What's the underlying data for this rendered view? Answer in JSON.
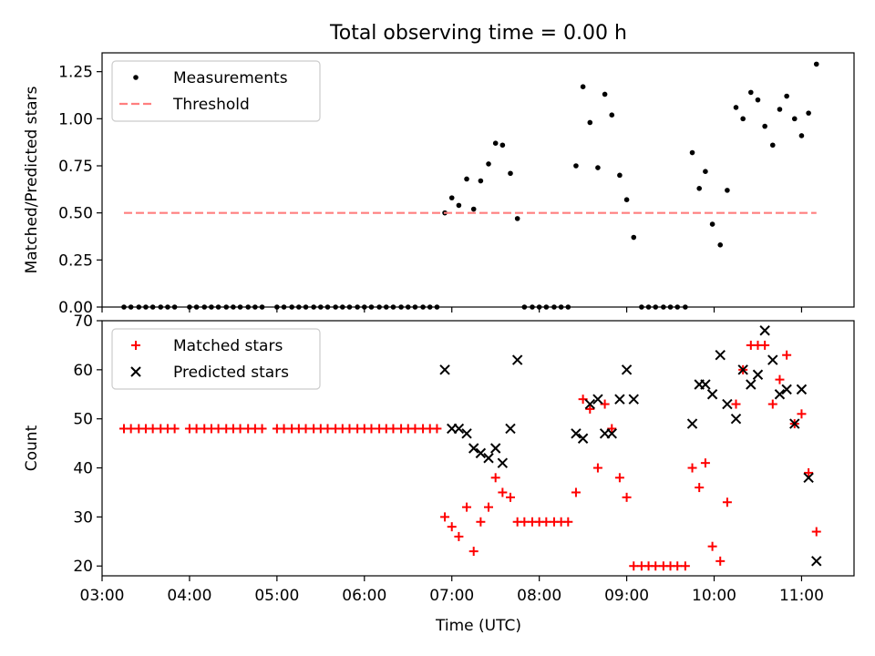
{
  "figure": {
    "title": "Total observing time = 0.00 h"
  },
  "chart_data": [
    {
      "type": "scatter",
      "ylabel": "Matched/Predicted stars",
      "ylim": [
        0,
        1.35
      ],
      "yticks": [
        "0.00",
        "0.25",
        "0.50",
        "0.75",
        "1.00",
        "1.25"
      ],
      "xlim": [
        3.0,
        11.6
      ],
      "legend_placement": "top-left",
      "series": [
        {
          "name": "Measurements",
          "color": "#000000",
          "marker": "dot",
          "points": [
            [
              3.25,
              0
            ],
            [
              3.33,
              0
            ],
            [
              3.42,
              0
            ],
            [
              3.5,
              0
            ],
            [
              3.58,
              0
            ],
            [
              3.67,
              0
            ],
            [
              3.75,
              0
            ],
            [
              3.83,
              0
            ],
            [
              4.0,
              0
            ],
            [
              4.08,
              0
            ],
            [
              4.17,
              0
            ],
            [
              4.25,
              0
            ],
            [
              4.33,
              0
            ],
            [
              4.42,
              0
            ],
            [
              4.5,
              0
            ],
            [
              4.58,
              0
            ],
            [
              4.67,
              0
            ],
            [
              4.75,
              0
            ],
            [
              4.83,
              0
            ],
            [
              5.0,
              0
            ],
            [
              5.08,
              0
            ],
            [
              5.17,
              0
            ],
            [
              5.25,
              0
            ],
            [
              5.33,
              0
            ],
            [
              5.42,
              0
            ],
            [
              5.5,
              0
            ],
            [
              5.58,
              0
            ],
            [
              5.67,
              0
            ],
            [
              5.75,
              0
            ],
            [
              5.83,
              0
            ],
            [
              5.92,
              0
            ],
            [
              6.0,
              0
            ],
            [
              6.08,
              0
            ],
            [
              6.17,
              0
            ],
            [
              6.25,
              0
            ],
            [
              6.33,
              0
            ],
            [
              6.42,
              0
            ],
            [
              6.5,
              0
            ],
            [
              6.58,
              0
            ],
            [
              6.67,
              0
            ],
            [
              6.75,
              0
            ],
            [
              6.83,
              0
            ],
            [
              6.92,
              0.5
            ],
            [
              7.0,
              0.58
            ],
            [
              7.08,
              0.54
            ],
            [
              7.17,
              0.68
            ],
            [
              7.25,
              0.52
            ],
            [
              7.33,
              0.67
            ],
            [
              7.42,
              0.76
            ],
            [
              7.5,
              0.87
            ],
            [
              7.58,
              0.86
            ],
            [
              7.67,
              0.71
            ],
            [
              7.75,
              0.47
            ],
            [
              7.83,
              0
            ],
            [
              7.92,
              0
            ],
            [
              8.0,
              0
            ],
            [
              8.08,
              0
            ],
            [
              8.17,
              0
            ],
            [
              8.25,
              0
            ],
            [
              8.33,
              0
            ],
            [
              8.42,
              0.75
            ],
            [
              8.5,
              1.17
            ],
            [
              8.58,
              0.98
            ],
            [
              8.67,
              0.74
            ],
            [
              8.75,
              1.13
            ],
            [
              8.83,
              1.02
            ],
            [
              8.92,
              0.7
            ],
            [
              9.0,
              0.57
            ],
            [
              9.08,
              0.37
            ],
            [
              9.17,
              0
            ],
            [
              9.25,
              0
            ],
            [
              9.33,
              0
            ],
            [
              9.42,
              0
            ],
            [
              9.5,
              0
            ],
            [
              9.58,
              0
            ],
            [
              9.67,
              0
            ],
            [
              9.75,
              0.82
            ],
            [
              9.83,
              0.63
            ],
            [
              9.9,
              0.72
            ],
            [
              9.98,
              0.44
            ],
            [
              10.07,
              0.33
            ],
            [
              10.15,
              0.62
            ],
            [
              10.25,
              1.06
            ],
            [
              10.33,
              1.0
            ],
            [
              10.42,
              1.14
            ],
            [
              10.5,
              1.1
            ],
            [
              10.58,
              0.96
            ],
            [
              10.67,
              0.86
            ],
            [
              10.75,
              1.05
            ],
            [
              10.83,
              1.12
            ],
            [
              10.92,
              1.0
            ],
            [
              11.0,
              0.91
            ],
            [
              11.08,
              1.03
            ],
            [
              11.17,
              1.29
            ]
          ]
        },
        {
          "name": "Threshold",
          "color": "#ff7f7f",
          "style": "dashed",
          "points": [
            [
              3.25,
              0.5
            ],
            [
              11.17,
              0.5
            ]
          ]
        }
      ]
    },
    {
      "type": "scatter",
      "xlabel": "Time (UTC)",
      "ylabel": "Count",
      "ylim": [
        18,
        70
      ],
      "yticks": [
        "20",
        "30",
        "40",
        "50",
        "60",
        "70"
      ],
      "xlim": [
        3.0,
        11.6
      ],
      "xticks": [
        {
          "value": 3,
          "label": "03:00"
        },
        {
          "value": 4,
          "label": "04:00"
        },
        {
          "value": 5,
          "label": "05:00"
        },
        {
          "value": 6,
          "label": "06:00"
        },
        {
          "value": 7,
          "label": "07:00"
        },
        {
          "value": 8,
          "label": "08:00"
        },
        {
          "value": 9,
          "label": "09:00"
        },
        {
          "value": 10,
          "label": "10:00"
        },
        {
          "value": 11,
          "label": "11:00"
        }
      ],
      "legend_placement": "top-left",
      "series": [
        {
          "name": "Matched stars",
          "color": "#ff0000",
          "marker": "plus",
          "points": [
            [
              3.25,
              48
            ],
            [
              3.33,
              48
            ],
            [
              3.42,
              48
            ],
            [
              3.5,
              48
            ],
            [
              3.58,
              48
            ],
            [
              3.67,
              48
            ],
            [
              3.75,
              48
            ],
            [
              3.83,
              48
            ],
            [
              4.0,
              48
            ],
            [
              4.08,
              48
            ],
            [
              4.17,
              48
            ],
            [
              4.25,
              48
            ],
            [
              4.33,
              48
            ],
            [
              4.42,
              48
            ],
            [
              4.5,
              48
            ],
            [
              4.58,
              48
            ],
            [
              4.67,
              48
            ],
            [
              4.75,
              48
            ],
            [
              4.83,
              48
            ],
            [
              5.0,
              48
            ],
            [
              5.08,
              48
            ],
            [
              5.17,
              48
            ],
            [
              5.25,
              48
            ],
            [
              5.33,
              48
            ],
            [
              5.42,
              48
            ],
            [
              5.5,
              48
            ],
            [
              5.58,
              48
            ],
            [
              5.67,
              48
            ],
            [
              5.75,
              48
            ],
            [
              5.83,
              48
            ],
            [
              5.92,
              48
            ],
            [
              6.0,
              48
            ],
            [
              6.08,
              48
            ],
            [
              6.17,
              48
            ],
            [
              6.25,
              48
            ],
            [
              6.33,
              48
            ],
            [
              6.42,
              48
            ],
            [
              6.5,
              48
            ],
            [
              6.58,
              48
            ],
            [
              6.67,
              48
            ],
            [
              6.75,
              48
            ],
            [
              6.83,
              48
            ],
            [
              6.92,
              30
            ],
            [
              7.0,
              28
            ],
            [
              7.08,
              26
            ],
            [
              7.17,
              32
            ],
            [
              7.25,
              23
            ],
            [
              7.33,
              29
            ],
            [
              7.42,
              32
            ],
            [
              7.5,
              38
            ],
            [
              7.58,
              35
            ],
            [
              7.67,
              34
            ],
            [
              7.75,
              29
            ],
            [
              7.83,
              29
            ],
            [
              7.92,
              29
            ],
            [
              8.0,
              29
            ],
            [
              8.08,
              29
            ],
            [
              8.17,
              29
            ],
            [
              8.25,
              29
            ],
            [
              8.33,
              29
            ],
            [
              8.42,
              35
            ],
            [
              8.5,
              54
            ],
            [
              8.58,
              52
            ],
            [
              8.67,
              40
            ],
            [
              8.75,
              53
            ],
            [
              8.83,
              48
            ],
            [
              8.92,
              38
            ],
            [
              9.0,
              34
            ],
            [
              9.08,
              20
            ],
            [
              9.17,
              20
            ],
            [
              9.25,
              20
            ],
            [
              9.33,
              20
            ],
            [
              9.42,
              20
            ],
            [
              9.5,
              20
            ],
            [
              9.58,
              20
            ],
            [
              9.67,
              20
            ],
            [
              9.75,
              40
            ],
            [
              9.83,
              36
            ],
            [
              9.9,
              41
            ],
            [
              9.98,
              24
            ],
            [
              10.07,
              21
            ],
            [
              10.15,
              33
            ],
            [
              10.25,
              53
            ],
            [
              10.33,
              60
            ],
            [
              10.42,
              65
            ],
            [
              10.5,
              65
            ],
            [
              10.58,
              65
            ],
            [
              10.67,
              53
            ],
            [
              10.75,
              58
            ],
            [
              10.83,
              63
            ],
            [
              10.92,
              49
            ],
            [
              11.0,
              51
            ],
            [
              11.08,
              39
            ],
            [
              11.17,
              27
            ]
          ]
        },
        {
          "name": "Predicted stars",
          "color": "#000000",
          "marker": "x",
          "points": [
            [
              6.92,
              60
            ],
            [
              7.0,
              48
            ],
            [
              7.08,
              48
            ],
            [
              7.17,
              47
            ],
            [
              7.25,
              44
            ],
            [
              7.33,
              43
            ],
            [
              7.42,
              42
            ],
            [
              7.5,
              44
            ],
            [
              7.58,
              41
            ],
            [
              7.67,
              48
            ],
            [
              7.75,
              62
            ],
            [
              8.42,
              47
            ],
            [
              8.5,
              46
            ],
            [
              8.58,
              53
            ],
            [
              8.67,
              54
            ],
            [
              8.75,
              47
            ],
            [
              8.83,
              47
            ],
            [
              8.92,
              54
            ],
            [
              9.0,
              60
            ],
            [
              9.08,
              54
            ],
            [
              9.75,
              49
            ],
            [
              9.83,
              57
            ],
            [
              9.9,
              57
            ],
            [
              9.98,
              55
            ],
            [
              10.07,
              63
            ],
            [
              10.15,
              53
            ],
            [
              10.25,
              50
            ],
            [
              10.33,
              60
            ],
            [
              10.42,
              57
            ],
            [
              10.5,
              59
            ],
            [
              10.58,
              68
            ],
            [
              10.67,
              62
            ],
            [
              10.75,
              55
            ],
            [
              10.83,
              56
            ],
            [
              10.92,
              49
            ],
            [
              11.0,
              56
            ],
            [
              11.08,
              38
            ],
            [
              11.17,
              21
            ]
          ]
        }
      ]
    }
  ]
}
